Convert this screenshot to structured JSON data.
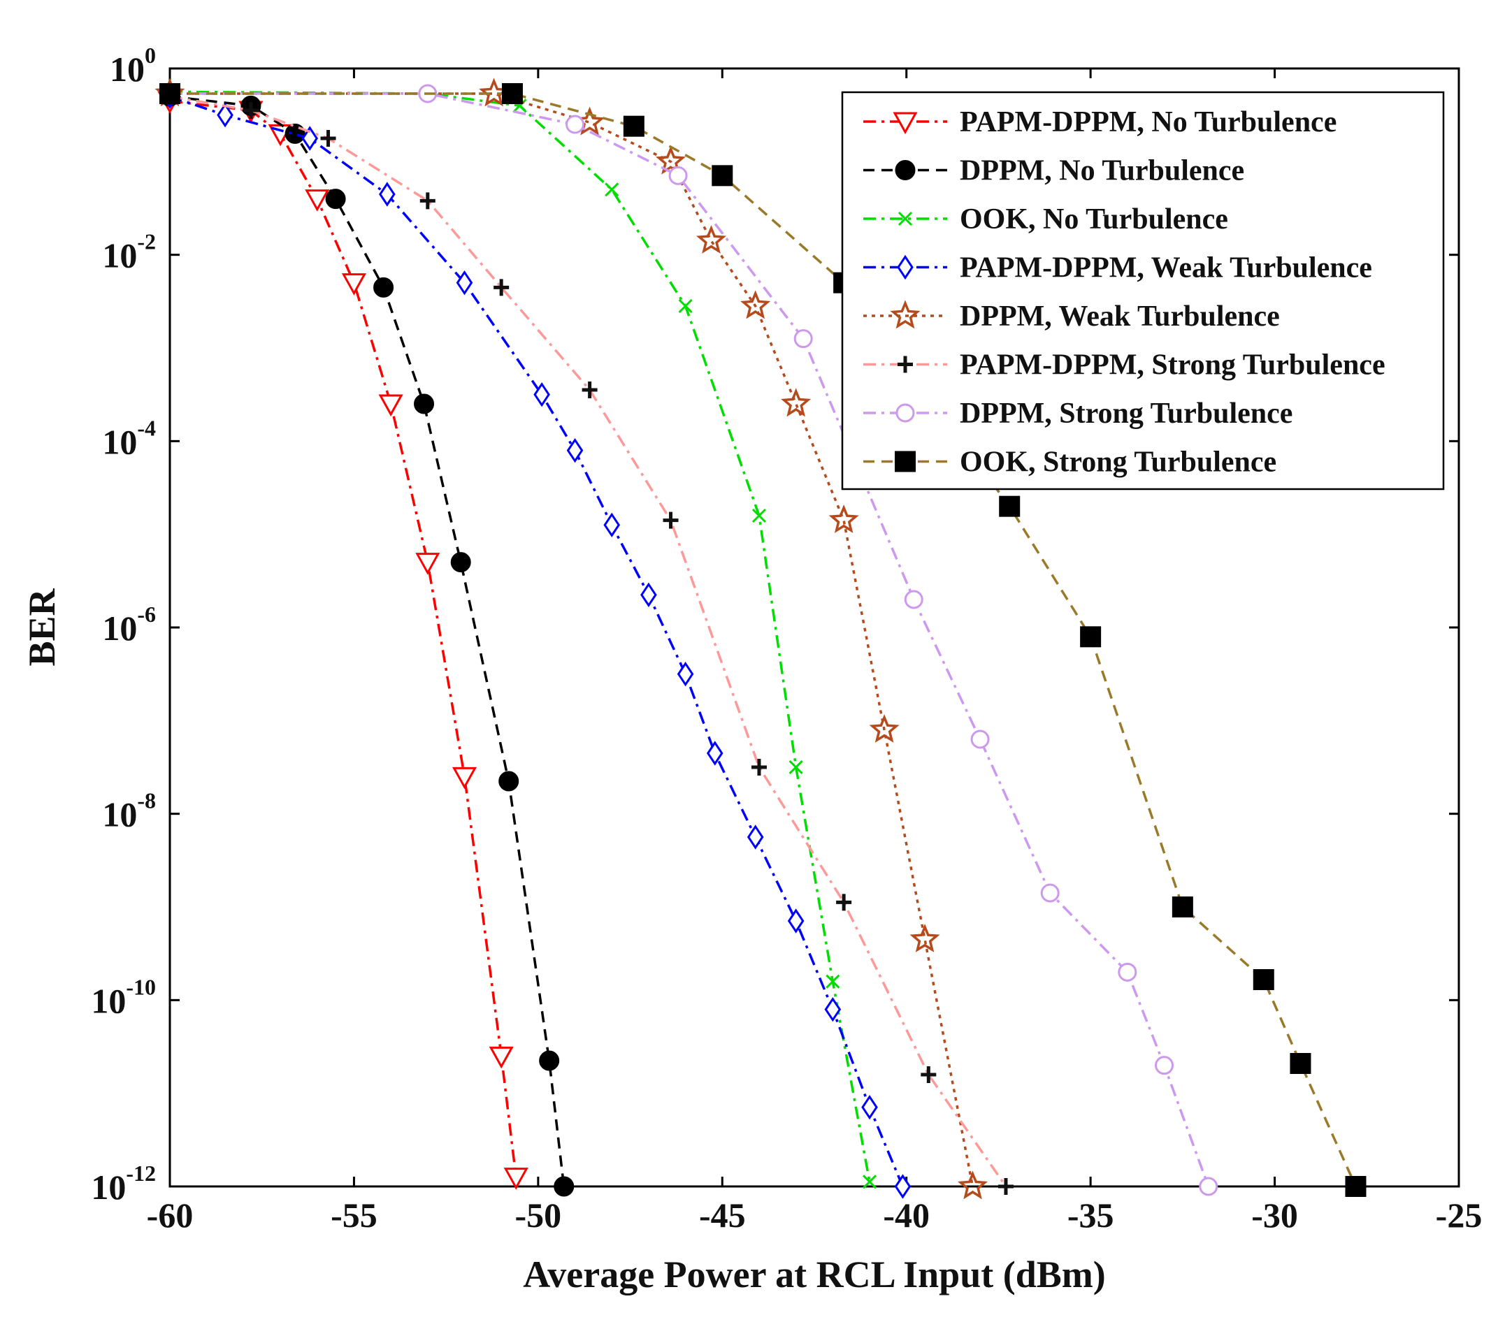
{
  "chart_data": {
    "type": "line",
    "title": "",
    "xlabel": "Average Power at RCL Input (dBm)",
    "ylabel": "BER",
    "xlim": [
      -60,
      -25
    ],
    "ylim_log10": [
      -12,
      0
    ],
    "yscale": "log",
    "x_ticks": [
      "-60",
      "-55",
      "-50",
      "-45",
      "-40",
      "-35",
      "-30",
      "-25"
    ],
    "y_tick_base": "10",
    "y_tick_exponents": [
      "0",
      "-2",
      "-4",
      "-6",
      "-8",
      "-10",
      "-12"
    ],
    "legend_position": "top-right",
    "series": [
      {
        "name": "PAPM-DPPM, No Turbulence",
        "color": "#ff0000",
        "dash": "dashdot",
        "marker": "triangle-down-open",
        "x": [
          -60,
          -57.8,
          -57,
          -56,
          -55,
          -54,
          -53,
          -52,
          -51,
          -50.6
        ],
        "log10_ber": [
          -0.35,
          -0.45,
          -0.7,
          -1.4,
          -2.3,
          -3.6,
          -5.3,
          -7.6,
          -10.6,
          -11.9
        ]
      },
      {
        "name": "DPPM, No Turbulence",
        "color": "#000000",
        "dash": "dash",
        "marker": "circle-filled",
        "x": [
          -60,
          -57.8,
          -56.6,
          -55.5,
          -54.2,
          -53.1,
          -52.1,
          -50.8,
          -49.7,
          -49.3
        ],
        "log10_ber": [
          -0.3,
          -0.4,
          -0.7,
          -1.4,
          -2.35,
          -3.6,
          -5.3,
          -7.65,
          -10.65,
          -12
        ]
      },
      {
        "name": "OOK, No Turbulence",
        "color": "#00dd00",
        "dash": "dashdot",
        "marker": "x",
        "x": [
          -60,
          -53,
          -50.5,
          -48,
          -46,
          -44,
          -43,
          -42,
          -41
        ],
        "log10_ber": [
          -0.25,
          -0.27,
          -0.4,
          -1.3,
          -2.55,
          -4.8,
          -7.5,
          -9.8,
          -11.95
        ]
      },
      {
        "name": "PAPM-DPPM, Weak Turbulence",
        "color": "#0000ff",
        "dash": "dashdot",
        "marker": "diamond-open",
        "x": [
          -60,
          -58.5,
          -56.2,
          -54.1,
          -52,
          -49.9,
          -49,
          -48,
          -47,
          -46,
          -45.2,
          -44.1,
          -43,
          -42,
          -41,
          -40.1
        ],
        "log10_ber": [
          -0.3,
          -0.5,
          -0.75,
          -1.35,
          -2.3,
          -3.5,
          -4.1,
          -4.9,
          -5.65,
          -6.5,
          -7.35,
          -8.25,
          -9.15,
          -10.1,
          -11.15,
          -12
        ]
      },
      {
        "name": "DPPM, Weak Turbulence",
        "color": "#b54a1c",
        "dash": "dot",
        "marker": "star-open",
        "x": [
          -60,
          -51.2,
          -48.6,
          -46.4,
          -45.3,
          -44.1,
          -43,
          -41.7,
          -40.6,
          -39.5,
          -38.2
        ],
        "log10_ber": [
          -0.27,
          -0.27,
          -0.58,
          -1.0,
          -1.85,
          -2.55,
          -3.6,
          -4.85,
          -7.1,
          -9.35,
          -12
        ]
      },
      {
        "name": "PAPM-DPPM, Strong Turbulence",
        "color": "#ff9999",
        "dash": "dashdot",
        "marker": "plus-filled",
        "x": [
          -60,
          -57.8,
          -55.7,
          -53,
          -51,
          -48.6,
          -46.4,
          -44,
          -41.7,
          -39.4,
          -37.3
        ],
        "log10_ber": [
          -0.3,
          -0.45,
          -0.75,
          -1.42,
          -2.35,
          -3.45,
          -4.85,
          -7.5,
          -8.95,
          -10.8,
          -12
        ]
      },
      {
        "name": "DPPM, Strong Turbulence",
        "color": "#cc99ee",
        "dash": "dashdot",
        "marker": "circle-open",
        "x": [
          -60,
          -53,
          -49,
          -46.2,
          -42.8,
          -39.8,
          -38,
          -36.1,
          -34,
          -33,
          -31.8
        ],
        "log10_ber": [
          -0.27,
          -0.27,
          -0.6,
          -1.15,
          -2.9,
          -5.7,
          -7.2,
          -8.85,
          -9.7,
          -10.7,
          -12
        ]
      },
      {
        "name": "OOK, Strong Turbulence",
        "color": "#9a7a28",
        "dash": "dash",
        "marker": "square-filled",
        "x": [
          -60,
          -50.7,
          -47.4,
          -45,
          -41.7,
          -37.2,
          -35,
          -32.5,
          -30.3,
          -29.3,
          -27.8
        ],
        "log10_ber": [
          -0.27,
          -0.27,
          -0.62,
          -1.15,
          -2.3,
          -4.7,
          -6.1,
          -9.0,
          -9.78,
          -10.68,
          -12
        ]
      }
    ]
  }
}
